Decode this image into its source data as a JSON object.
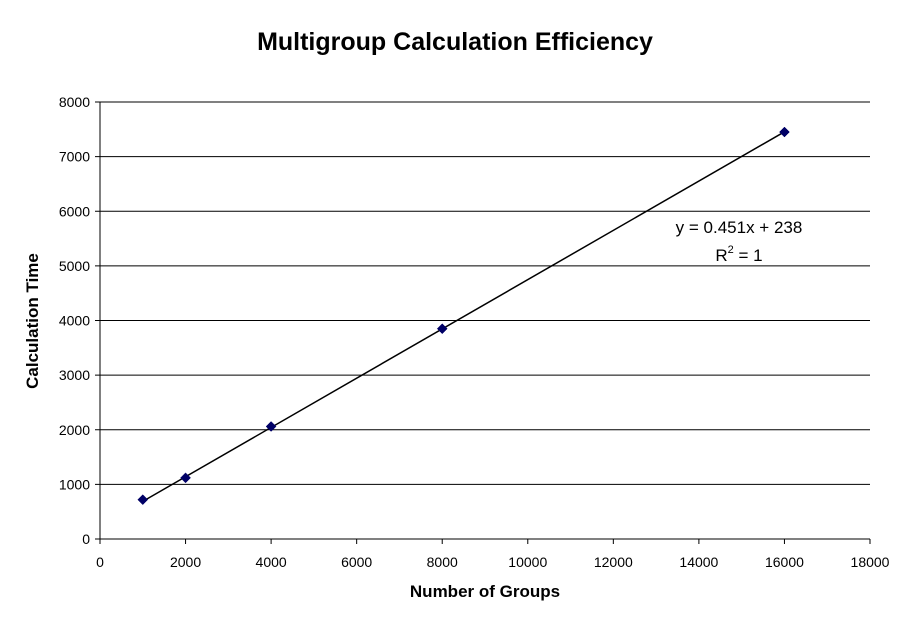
{
  "chart_data": {
    "type": "scatter",
    "title": "Multigroup Calculation Efficiency",
    "xlabel": "Number of Groups",
    "ylabel": "Calculation Time",
    "xlim": [
      0,
      18000
    ],
    "ylim": [
      0,
      8000
    ],
    "x_ticks": [
      0,
      2000,
      4000,
      6000,
      8000,
      10000,
      12000,
      14000,
      16000,
      18000
    ],
    "y_ticks": [
      0,
      1000,
      2000,
      3000,
      4000,
      5000,
      6000,
      7000,
      8000
    ],
    "grid": {
      "horizontal": true,
      "vertical": false
    },
    "series": [
      {
        "marker": "diamond",
        "color": "#000066",
        "points": [
          {
            "x": 1000,
            "y": 720
          },
          {
            "x": 2000,
            "y": 1120
          },
          {
            "x": 4000,
            "y": 2060
          },
          {
            "x": 8000,
            "y": 3850
          },
          {
            "x": 16000,
            "y": 7450
          }
        ]
      }
    ],
    "trendline": {
      "type": "linear",
      "slope": 0.451,
      "intercept": 238,
      "x_range": [
        1000,
        16000
      ],
      "color": "#000000",
      "equation_text": "y = 0.451x + 238",
      "r2_prefix": "R",
      "r2_exponent": "2",
      "r2_suffix": " = 1"
    }
  }
}
